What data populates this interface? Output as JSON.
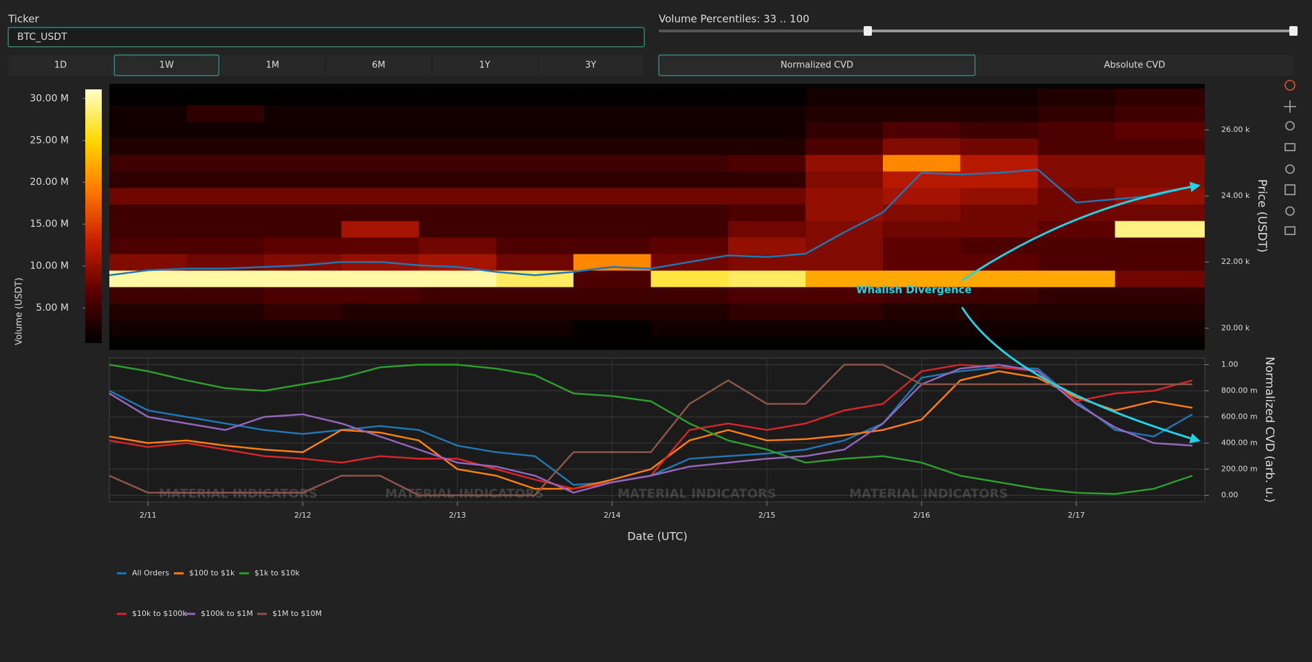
{
  "controls": {
    "ticker_label": "Ticker",
    "ticker_value": "BTC_USDT",
    "ranges": [
      "1D",
      "1W",
      "1M",
      "6M",
      "1Y",
      "3Y"
    ],
    "selected_range": "1W",
    "volume_percentiles_label": "Volume Percentiles: 33 .. 100",
    "cvd_modes": [
      "Normalized CVD",
      "Absolute CVD"
    ],
    "selected_cvd_mode": "Normalized CVD"
  },
  "annotation": "Whalish Divergence",
  "watermark": "MATERIAL INDICATORS",
  "chart_data": [
    {
      "type": "heatmap",
      "y_label": "Price (USDT)",
      "colorbar_label": "Volume (USDT)",
      "xlim": [
        10.75,
        17.83
      ],
      "ylim": [
        19340,
        27390
      ],
      "yticks": [
        {
          "value": 20000,
          "label": "20.00 k"
        },
        {
          "value": 22000,
          "label": "22.00 k"
        },
        {
          "value": 24000,
          "label": "24.00 k"
        },
        {
          "value": 26000,
          "label": "26.00 k"
        }
      ],
      "zlim": [
        800000.0,
        31100000.0
      ],
      "zticks": [
        {
          "value": 5000000.0,
          "label": "5.00 M"
        },
        {
          "value": 10000000.0,
          "label": "10.00 M"
        },
        {
          "value": 15000000.0,
          "label": "15.00 M"
        },
        {
          "value": 20000000.0,
          "label": "20.00 M"
        },
        {
          "value": 25000000.0,
          "label": "25.00 M"
        },
        {
          "value": 30000000.0,
          "label": "30.00 M"
        }
      ],
      "colorscale": [
        "#000000",
        "#5a0000",
        "#c81e00",
        "#ff7800",
        "#ffd800",
        "#ffffc8"
      ],
      "x_bins": [
        10.75,
        11.25,
        11.75,
        12.25,
        12.75,
        13.25,
        13.75,
        14.25,
        14.75,
        15.25,
        15.75,
        16.25,
        16.75,
        17.25,
        17.83
      ],
      "y_bins": [
        19250,
        19750,
        20250,
        20750,
        21250,
        21750,
        22250,
        22750,
        23250,
        23750,
        24250,
        24750,
        25250,
        25750,
        26250,
        26750,
        27250
      ],
      "z": [
        [
          1000000.0,
          1000000.0,
          1000000.0,
          1000000.0,
          1000000.0,
          1000000.0,
          1000000.0,
          1000000.0,
          1000000.0,
          1000000.0,
          1000000.0,
          1000000.0,
          1000000.0,
          1000000.0
        ],
        [
          2000000.0,
          2000000.0,
          2000000.0,
          2000000.0,
          2000000.0,
          2000000.0,
          1000000.0,
          2000000.0,
          2000000.0,
          2000000.0,
          2000000.0,
          2000000.0,
          2000000.0,
          2000000.0
        ],
        [
          3000000.0,
          3000000.0,
          4000000.0,
          3000000.0,
          3000000.0,
          3000000.0,
          3000000.0,
          3000000.0,
          4000000.0,
          4000000.0,
          3000000.0,
          3000000.0,
          3000000.0,
          3000000.0
        ],
        [
          5000000.0,
          5000000.0,
          6000000.0,
          6000000.0,
          5000000.0,
          5000000.0,
          5000000.0,
          5000000.0,
          6000000.0,
          6000000.0,
          5000000.0,
          5000000.0,
          4000000.0,
          4000000.0
        ],
        [
          30000000.0,
          30000000.0,
          30000000.0,
          30000000.0,
          30000000.0,
          28000000.0,
          6000000.0,
          27000000.0,
          28000000.0,
          22000000.0,
          22000000.0,
          22000000.0,
          22000000.0,
          8000000.0
        ],
        [
          9000000.0,
          8000000.0,
          9000000.0,
          10000000.0,
          11000000.0,
          8000000.0,
          20000000.0,
          8000000.0,
          9000000.0,
          9000000.0,
          7000000.0,
          7000000.0,
          6000000.0,
          6000000.0
        ],
        [
          6000000.0,
          6000000.0,
          7000000.0,
          7000000.0,
          8000000.0,
          6000000.0,
          6000000.0,
          7000000.0,
          10000000.0,
          9000000.0,
          7000000.0,
          6000000.0,
          6000000.0,
          6000000.0
        ],
        [
          5000000.0,
          5000000.0,
          5000000.0,
          11000000.0,
          5000000.0,
          5000000.0,
          5000000.0,
          5000000.0,
          8000000.0,
          9000000.0,
          8000000.0,
          8000000.0,
          7000000.0,
          29000000.0
        ],
        [
          5000000.0,
          5000000.0,
          5000000.0,
          5000000.0,
          5000000.0,
          5000000.0,
          5000000.0,
          5000000.0,
          6000000.0,
          10000000.0,
          9000000.0,
          8000000.0,
          8000000.0,
          8000000.0
        ],
        [
          8000000.0,
          8000000.0,
          8000000.0,
          8000000.0,
          8000000.0,
          8000000.0,
          8000000.0,
          8000000.0,
          8000000.0,
          10000000.0,
          11000000.0,
          10000000.0,
          8000000.0,
          10000000.0
        ],
        [
          4000000.0,
          4000000.0,
          4000000.0,
          4000000.0,
          4000000.0,
          4000000.0,
          4000000.0,
          4000000.0,
          4000000.0,
          9000000.0,
          12000000.0,
          12000000.0,
          9000000.0,
          9000000.0
        ],
        [
          5000000.0,
          5000000.0,
          5000000.0,
          5000000.0,
          5000000.0,
          5000000.0,
          5000000.0,
          5000000.0,
          6000000.0,
          10000000.0,
          20000000.0,
          12000000.0,
          9000000.0,
          9000000.0
        ],
        [
          3000000.0,
          3000000.0,
          3000000.0,
          3000000.0,
          3000000.0,
          3000000.0,
          3000000.0,
          3000000.0,
          3000000.0,
          6000000.0,
          9000000.0,
          8000000.0,
          6000000.0,
          6000000.0
        ],
        [
          2000000.0,
          2000000.0,
          2000000.0,
          2000000.0,
          2000000.0,
          2000000.0,
          2000000.0,
          2000000.0,
          2000000.0,
          4000000.0,
          6000000.0,
          5000000.0,
          6000000.0,
          7000000.0
        ],
        [
          2000000.0,
          4000000.0,
          2000000.0,
          2000000.0,
          2000000.0,
          2000000.0,
          2000000.0,
          2000000.0,
          2000000.0,
          3000000.0,
          3000000.0,
          3000000.0,
          4000000.0,
          5000000.0
        ],
        [
          1000000.0,
          1000000.0,
          1000000.0,
          1000000.0,
          1000000.0,
          1000000.0,
          1000000.0,
          1000000.0,
          1000000.0,
          2000000.0,
          2000000.0,
          2000000.0,
          3000000.0,
          4000000.0
        ]
      ],
      "line": {
        "color": "#1f77b4",
        "x": [
          10.75,
          11,
          11.25,
          11.5,
          11.75,
          12,
          12.25,
          12.5,
          12.75,
          13,
          13.25,
          13.5,
          13.75,
          14,
          14.25,
          14.5,
          14.75,
          15,
          15.25,
          15.5,
          15.75,
          16,
          16.25,
          16.5,
          16.75,
          17,
          17.25,
          17.5,
          17.75
        ],
        "values": [
          21600,
          21750,
          21800,
          21800,
          21850,
          21900,
          22000,
          22000,
          21900,
          21850,
          21700,
          21600,
          21700,
          21850,
          21800,
          22000,
          22200,
          22150,
          22250,
          22900,
          23500,
          24700,
          24650,
          24700,
          24800,
          23800,
          23900,
          24000,
          24300
        ]
      }
    },
    {
      "type": "line",
      "x_label": "Date (UTC)",
      "y_label": "Normalized CVD (arb. u.)",
      "grid": true,
      "xlim": [
        10.75,
        17.83
      ],
      "xticks": [
        {
          "value": 11,
          "label": "2/11"
        },
        {
          "value": 12,
          "label": "2/12"
        },
        {
          "value": 13,
          "label": "2/13"
        },
        {
          "value": 14,
          "label": "2/14"
        },
        {
          "value": 15,
          "label": "2/15"
        },
        {
          "value": 16,
          "label": "2/16"
        },
        {
          "value": 17,
          "label": "2/17"
        }
      ],
      "ylim": [
        -0.05,
        1.05
      ],
      "yticks": [
        {
          "value": 0,
          "label": "0.00"
        },
        {
          "value": 0.2,
          "label": "200.00 m"
        },
        {
          "value": 0.4,
          "label": "400.00 m"
        },
        {
          "value": 0.6,
          "label": "600.00 m"
        },
        {
          "value": 0.8,
          "label": "800.00 m"
        },
        {
          "value": 1,
          "label": "1.00"
        }
      ],
      "x": [
        10.75,
        11,
        11.25,
        11.5,
        11.75,
        12,
        12.25,
        12.5,
        12.75,
        13,
        13.25,
        13.5,
        13.75,
        14,
        14.25,
        14.5,
        14.75,
        15,
        15.25,
        15.5,
        15.75,
        16,
        16.25,
        16.5,
        16.75,
        17,
        17.25,
        17.5,
        17.75
      ],
      "series": [
        {
          "name": "All Orders",
          "color": "#1f77b4",
          "values": [
            0.8,
            0.65,
            0.6,
            0.55,
            0.5,
            0.47,
            0.5,
            0.53,
            0.5,
            0.38,
            0.33,
            0.3,
            0.08,
            0.1,
            0.15,
            0.28,
            0.3,
            0.32,
            0.35,
            0.42,
            0.55,
            0.9,
            0.95,
            0.98,
            0.97,
            0.72,
            0.5,
            0.45,
            0.62
          ]
        },
        {
          "name": "$100 to $1k",
          "color": "#ff7f0e",
          "values": [
            0.45,
            0.4,
            0.42,
            0.38,
            0.35,
            0.33,
            0.5,
            0.48,
            0.42,
            0.2,
            0.15,
            0.05,
            0.05,
            0.12,
            0.2,
            0.42,
            0.5,
            0.42,
            0.43,
            0.46,
            0.5,
            0.58,
            0.88,
            0.95,
            0.9,
            0.75,
            0.65,
            0.72,
            0.67
          ]
        },
        {
          "name": "$1k to $10k",
          "color": "#2ca02c",
          "values": [
            1.0,
            0.95,
            0.88,
            0.82,
            0.8,
            0.85,
            0.9,
            0.98,
            1.0,
            1.0,
            0.97,
            0.92,
            0.78,
            0.76,
            0.72,
            0.55,
            0.42,
            0.35,
            0.25,
            0.28,
            0.3,
            0.25,
            0.15,
            0.1,
            0.05,
            0.02,
            0.01,
            0.05,
            0.15
          ]
        },
        {
          "name": "$10k to $100k",
          "color": "#d62728",
          "values": [
            0.42,
            0.37,
            0.4,
            0.35,
            0.3,
            0.28,
            0.25,
            0.3,
            0.28,
            0.28,
            0.2,
            0.12,
            0.05,
            0.1,
            0.15,
            0.5,
            0.55,
            0.5,
            0.55,
            0.65,
            0.7,
            0.95,
            1.0,
            0.98,
            0.95,
            0.72,
            0.78,
            0.8,
            0.88
          ]
        },
        {
          "name": "$100k to $1M",
          "color": "#9467bd",
          "values": [
            0.78,
            0.6,
            0.55,
            0.5,
            0.6,
            0.62,
            0.55,
            0.45,
            0.35,
            0.25,
            0.22,
            0.15,
            0.02,
            0.1,
            0.15,
            0.22,
            0.25,
            0.28,
            0.3,
            0.35,
            0.55,
            0.85,
            0.97,
            1.0,
            0.95,
            0.7,
            0.52,
            0.4,
            0.38
          ]
        },
        {
          "name": "$1M to $10M",
          "color": "#8c564b",
          "values": [
            0.15,
            0.02,
            0.02,
            0.02,
            0.02,
            0.02,
            0.15,
            0.15,
            0.0,
            0.0,
            0.0,
            0.0,
            0.33,
            0.33,
            0.33,
            0.7,
            0.88,
            0.7,
            0.7,
            1.0,
            1.0,
            0.85,
            0.85,
            0.85,
            0.85,
            0.85,
            0.85,
            0.85,
            0.85
          ]
        }
      ]
    }
  ]
}
